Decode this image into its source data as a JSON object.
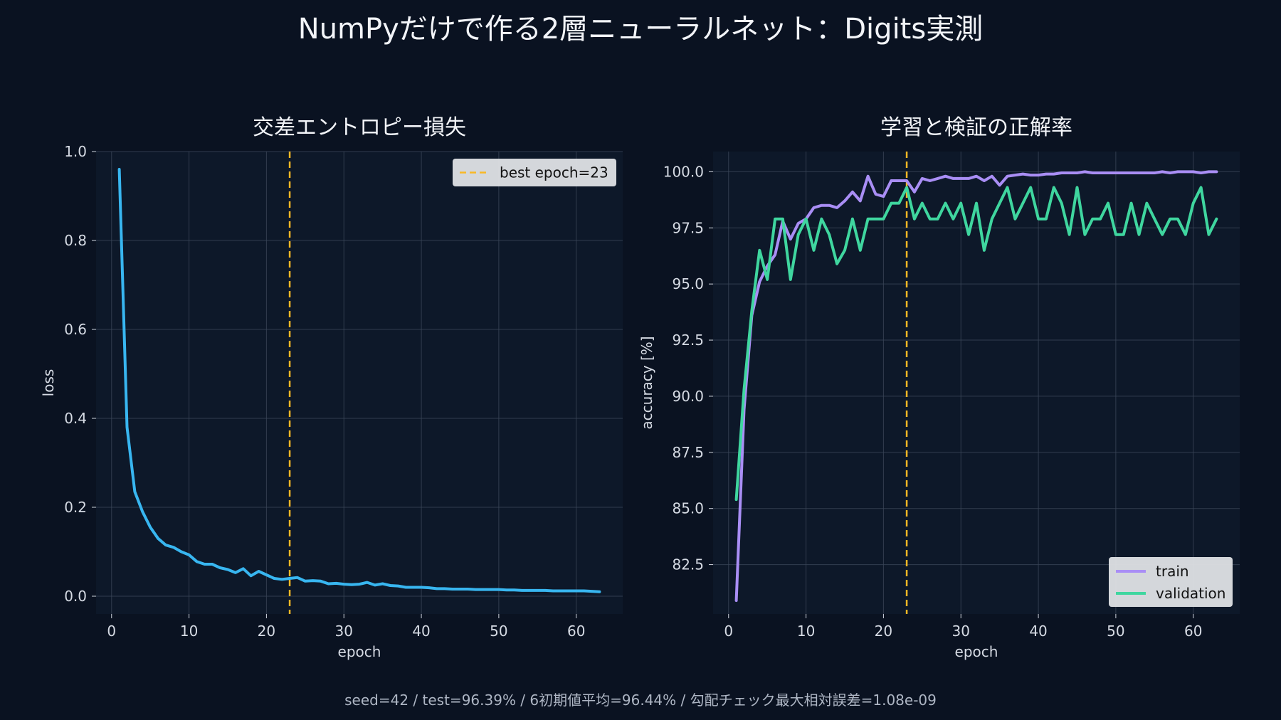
{
  "figure": {
    "title": "NumPyだけで作る2層ニューラルネット：Digits実測",
    "footer": "seed=42 / test=96.39% / 6初期値平均=96.44% / 勾配チェック最大相対誤差=1.08e-09",
    "colors": {
      "background": "#0a1221",
      "panel": "#0d1829",
      "grid": "#3a4658",
      "text": "#f2f4f8",
      "best": "#f9b824"
    }
  },
  "chart_data": [
    {
      "type": "line",
      "title": "交差エントロピー損失",
      "xlabel": "epoch",
      "ylabel": "loss",
      "xlim": [
        -2,
        66
      ],
      "ylim": [
        -0.04,
        1.0
      ],
      "xticks": [
        0,
        10,
        20,
        30,
        40,
        50,
        60
      ],
      "yticks": [
        0.0,
        0.2,
        0.4,
        0.6,
        0.8,
        1.0
      ],
      "ytick_labels": [
        "0.0",
        "0.2",
        "0.4",
        "0.6",
        "0.8",
        "1.0"
      ],
      "grid": true,
      "legend": "top-right",
      "vline": {
        "x": 23,
        "label": "best epoch=23",
        "color": "#f9b824",
        "style": "dashed"
      },
      "series": [
        {
          "color": "#38b6f0",
          "x": [
            1,
            2,
            3,
            4,
            5,
            6,
            7,
            8,
            9,
            10,
            11,
            12,
            13,
            14,
            15,
            16,
            17,
            18,
            19,
            20,
            21,
            22,
            23,
            24,
            25,
            26,
            27,
            28,
            29,
            30,
            31,
            32,
            33,
            34,
            35,
            36,
            37,
            38,
            39,
            40,
            41,
            42,
            43,
            44,
            45,
            46,
            47,
            48,
            49,
            50,
            51,
            52,
            53,
            54,
            55,
            56,
            57,
            58,
            59,
            60,
            61,
            62,
            63
          ],
          "values": [
            0.96,
            0.38,
            0.235,
            0.19,
            0.155,
            0.13,
            0.115,
            0.11,
            0.1,
            0.093,
            0.078,
            0.072,
            0.072,
            0.064,
            0.06,
            0.053,
            0.062,
            0.046,
            0.056,
            0.048,
            0.04,
            0.038,
            0.04,
            0.042,
            0.034,
            0.035,
            0.034,
            0.028,
            0.029,
            0.027,
            0.026,
            0.027,
            0.031,
            0.025,
            0.028,
            0.024,
            0.023,
            0.02,
            0.02,
            0.02,
            0.019,
            0.017,
            0.017,
            0.016,
            0.016,
            0.016,
            0.015,
            0.015,
            0.015,
            0.015,
            0.014,
            0.014,
            0.013,
            0.013,
            0.013,
            0.013,
            0.012,
            0.012,
            0.012,
            0.012,
            0.012,
            0.011,
            0.01
          ]
        }
      ]
    },
    {
      "type": "line",
      "title": "学習と検証の正解率",
      "xlabel": "epoch",
      "ylabel": "accuracy [%]",
      "xlim": [
        -2,
        66
      ],
      "ylim": [
        80.3,
        100.9
      ],
      "xticks": [
        0,
        10,
        20,
        30,
        40,
        50,
        60
      ],
      "yticks": [
        82.5,
        85.0,
        87.5,
        90.0,
        92.5,
        95.0,
        97.5,
        100.0
      ],
      "ytick_labels": [
        "82.5",
        "85.0",
        "87.5",
        "90.0",
        "92.5",
        "95.0",
        "97.5",
        "100.0"
      ],
      "grid": true,
      "legend": "bottom-right",
      "vline": {
        "x": 23,
        "color": "#f9b824",
        "style": "dashed"
      },
      "series": [
        {
          "name": "train",
          "color": "#a98ef5",
          "x": [
            1,
            2,
            3,
            4,
            5,
            6,
            7,
            8,
            9,
            10,
            11,
            12,
            13,
            14,
            15,
            16,
            17,
            18,
            19,
            20,
            21,
            22,
            23,
            24,
            25,
            26,
            27,
            28,
            29,
            30,
            31,
            32,
            33,
            34,
            35,
            36,
            37,
            38,
            39,
            40,
            41,
            42,
            43,
            44,
            45,
            46,
            47,
            48,
            49,
            50,
            51,
            52,
            53,
            54,
            55,
            56,
            57,
            58,
            59,
            60,
            61,
            62,
            63
          ],
          "values": [
            80.9,
            89.4,
            93.6,
            95.1,
            95.8,
            96.3,
            97.8,
            97.0,
            97.7,
            97.9,
            98.4,
            98.5,
            98.5,
            98.4,
            98.7,
            99.1,
            98.7,
            99.8,
            99.0,
            98.9,
            99.6,
            99.6,
            99.6,
            99.1,
            99.7,
            99.6,
            99.7,
            99.8,
            99.7,
            99.7,
            99.7,
            99.8,
            99.6,
            99.8,
            99.4,
            99.8,
            99.85,
            99.9,
            99.85,
            99.85,
            99.9,
            99.9,
            99.95,
            99.95,
            99.95,
            100.0,
            99.95,
            99.95,
            99.95,
            99.95,
            99.95,
            99.95,
            99.95,
            99.95,
            99.95,
            100.0,
            99.95,
            100.0,
            100.0,
            100.0,
            99.95,
            100.0,
            100.0
          ]
        },
        {
          "name": "validation",
          "color": "#3fd69f",
          "x": [
            1,
            2,
            3,
            4,
            5,
            6,
            7,
            8,
            9,
            10,
            11,
            12,
            13,
            14,
            15,
            16,
            17,
            18,
            19,
            20,
            21,
            22,
            23,
            24,
            25,
            26,
            27,
            28,
            29,
            30,
            31,
            32,
            33,
            34,
            35,
            36,
            37,
            38,
            39,
            40,
            41,
            42,
            43,
            44,
            45,
            46,
            47,
            48,
            49,
            50,
            51,
            52,
            53,
            54,
            55,
            56,
            57,
            58,
            59,
            60,
            61,
            62,
            63
          ],
          "values": [
            85.4,
            90.3,
            93.8,
            96.5,
            95.2,
            97.9,
            97.9,
            95.2,
            97.2,
            97.9,
            96.5,
            97.9,
            97.2,
            95.9,
            96.5,
            97.9,
            96.5,
            97.9,
            97.9,
            97.9,
            98.6,
            98.6,
            99.3,
            97.9,
            98.6,
            97.9,
            97.9,
            98.6,
            97.9,
            98.6,
            97.2,
            98.6,
            96.5,
            97.9,
            98.6,
            99.3,
            97.9,
            98.6,
            99.3,
            97.9,
            97.9,
            99.3,
            98.6,
            97.2,
            99.3,
            97.2,
            97.9,
            97.9,
            98.6,
            97.2,
            97.2,
            98.6,
            97.2,
            98.6,
            97.9,
            97.2,
            97.9,
            97.9,
            97.2,
            98.6,
            99.3,
            97.2,
            97.9
          ]
        }
      ]
    }
  ]
}
